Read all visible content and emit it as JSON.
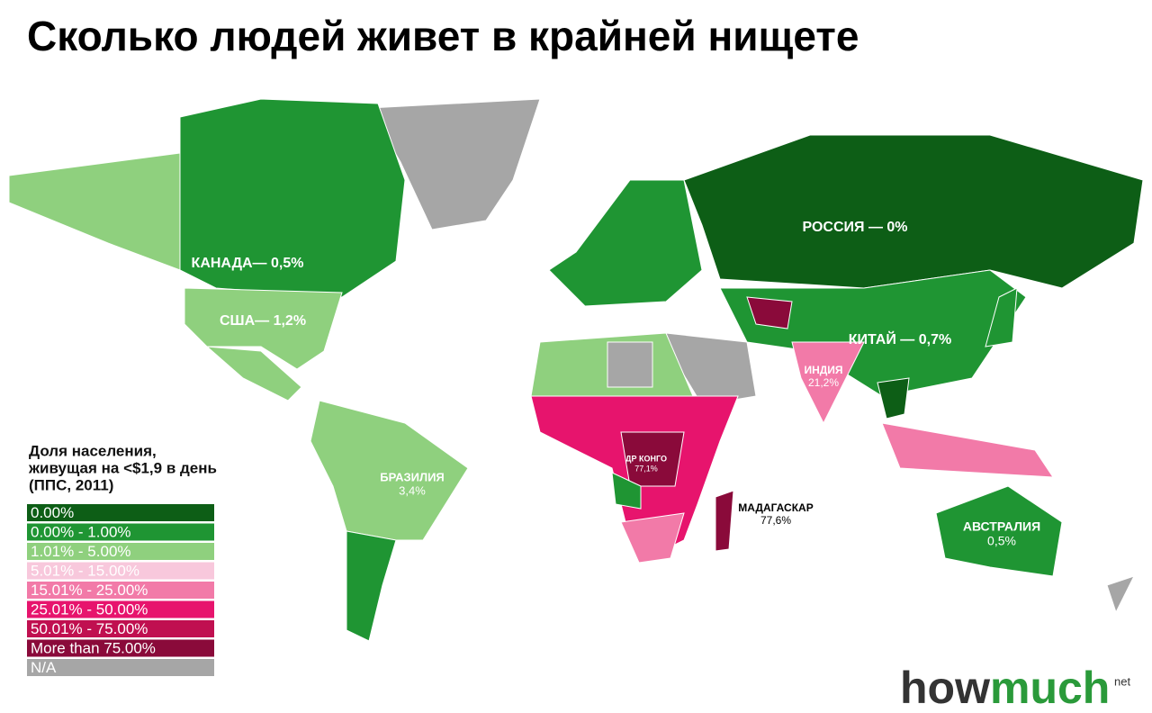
{
  "title": "Сколько людей живет в крайней нищете",
  "legend": {
    "title_lines": [
      "Доля населения,",
      "живущая на <$1,9 в день",
      "(ППС, 2011)"
    ],
    "items": [
      {
        "label": "0.00%",
        "color": "#0d5e16"
      },
      {
        "label": "0.00% - 1.00%",
        "color": "#1f9533"
      },
      {
        "label": "1.01% - 5.00%",
        "color": "#8fd07e"
      },
      {
        "label": "5.01% - 15.00%",
        "color": "#f8c8dc"
      },
      {
        "label": "15.01% - 25.00%",
        "color": "#f27aa8"
      },
      {
        "label": "25.01% - 50.00%",
        "color": "#e7146d"
      },
      {
        "label": "50.01% - 75.00%",
        "color": "#c01050"
      },
      {
        "label": "More than 75.00%",
        "color": "#8a0a3a"
      },
      {
        "label": "N/A",
        "color": "#a6a6a6"
      }
    ]
  },
  "labels": [
    {
      "lines": [
        "РОССИЯ — 0%"
      ]
    },
    {
      "lines": [
        "КАНАДА— 0,5%"
      ]
    },
    {
      "lines": [
        "США— 1,2%"
      ]
    },
    {
      "lines": [
        "КИТАЙ — 0,7%"
      ]
    },
    {
      "lines": [
        "ИНДИЯ",
        "21,2%"
      ]
    },
    {
      "lines": [
        "БРАЗИЛИЯ",
        "3,4%"
      ]
    },
    {
      "lines": [
        "ДР КОНГО",
        "77,1%"
      ]
    },
    {
      "lines": [
        "МАДАГАСКАР",
        "77,6%"
      ]
    },
    {
      "lines": [
        "АВСТРАЛИЯ",
        "0,5%"
      ]
    }
  ],
  "logo": {
    "brand_a": "how",
    "brand_b": "much",
    "tld": "net"
  }
}
